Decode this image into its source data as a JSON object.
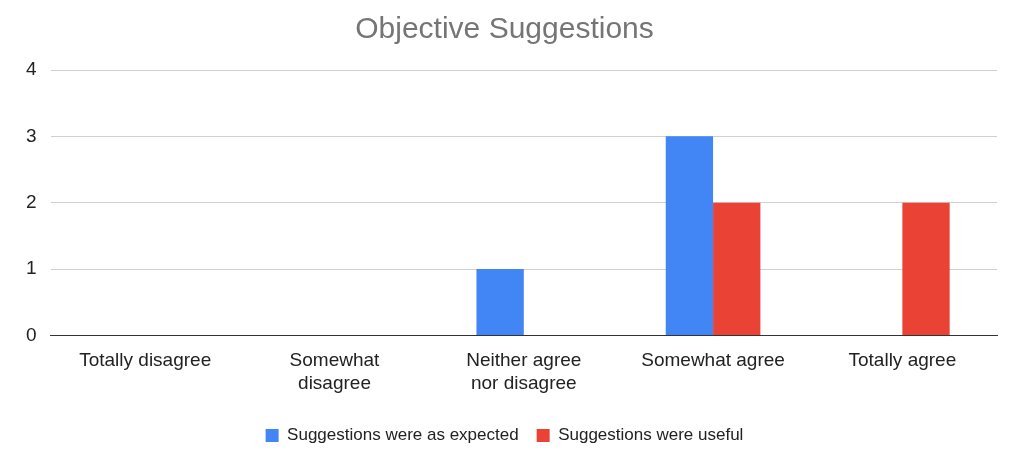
{
  "chart_data": {
    "type": "bar",
    "title": "Objective Suggestions",
    "categories": [
      "Totally disagree",
      "Somewhat disagree",
      "Neither agree nor disagree",
      "Somewhat agree",
      "Totally agree"
    ],
    "series": [
      {
        "name": "Suggestions were as expected",
        "color": "#4285f4",
        "values": [
          0,
          0,
          1,
          3,
          0
        ]
      },
      {
        "name": "Suggestions were useful",
        "color": "#ea4335",
        "values": [
          0,
          0,
          0,
          2,
          2
        ]
      }
    ],
    "ylim": [
      0,
      4
    ],
    "yticks": [
      0,
      1,
      2,
      3,
      4
    ],
    "grid": "y",
    "legend": "bottom"
  }
}
